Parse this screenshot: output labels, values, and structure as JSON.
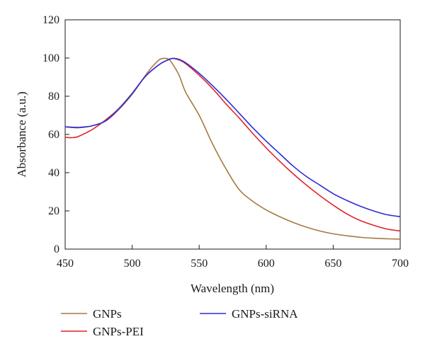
{
  "chart_data": {
    "type": "line",
    "title": "",
    "xlabel": "Wavelength (nm)",
    "ylabel": "Absorbance (a.u.)",
    "xlim": [
      450,
      700
    ],
    "ylim": [
      0,
      120
    ],
    "xticks": [
      450,
      500,
      550,
      600,
      650,
      700
    ],
    "yticks": [
      0,
      20,
      40,
      60,
      80,
      100,
      120
    ],
    "grid": false,
    "legend_position": "bottom",
    "series": [
      {
        "name": "GNPs",
        "color": "#a57a3e",
        "x": [
          450,
          460,
          470,
          480,
          490,
          500,
          510,
          515,
          520,
          523,
          527,
          530,
          535,
          540,
          550,
          560,
          570,
          580,
          590,
          600,
          610,
          620,
          630,
          640,
          650,
          660,
          670,
          680,
          690,
          700
        ],
        "y": [
          64,
          63.5,
          64.5,
          67,
          73,
          81,
          91,
          95.5,
          99,
          99.8,
          99.5,
          97,
          91,
          82,
          70,
          55,
          42,
          31,
          25,
          20.5,
          17,
          14,
          11.5,
          9.5,
          8,
          7,
          6.2,
          5.7,
          5.4,
          5.2
        ]
      },
      {
        "name": "GNPs-PEI",
        "color": "#e02428",
        "x": [
          450,
          455,
          460,
          470,
          480,
          490,
          500,
          510,
          520,
          525,
          530,
          535,
          540,
          550,
          560,
          570,
          580,
          590,
          600,
          610,
          620,
          630,
          640,
          650,
          660,
          670,
          680,
          690,
          700
        ],
        "y": [
          58.5,
          58.3,
          59,
          62.5,
          67.5,
          73.5,
          81.5,
          90.5,
          96.5,
          98.5,
          99.8,
          99,
          97,
          91,
          84,
          76,
          68.5,
          60.5,
          53,
          46,
          39.5,
          33.5,
          28,
          23,
          18.5,
          15,
          12.5,
          10.5,
          9.5
        ]
      },
      {
        "name": "GNPs-siRNA",
        "color": "#2f2bd6",
        "x": [
          450,
          455,
          460,
          465,
          470,
          480,
          490,
          500,
          510,
          520,
          525,
          530,
          535,
          540,
          550,
          560,
          570,
          580,
          590,
          600,
          610,
          620,
          630,
          640,
          650,
          660,
          670,
          680,
          690,
          700
        ],
        "y": [
          64,
          63.8,
          63.7,
          64,
          64.5,
          67,
          73.5,
          81.5,
          90.5,
          96.5,
          98.5,
          99.8,
          99.3,
          97.5,
          92,
          85.5,
          78.5,
          71,
          63.5,
          56.5,
          50,
          43.5,
          38,
          33.5,
          29,
          25.5,
          22.5,
          20,
          18,
          17
        ]
      }
    ]
  }
}
